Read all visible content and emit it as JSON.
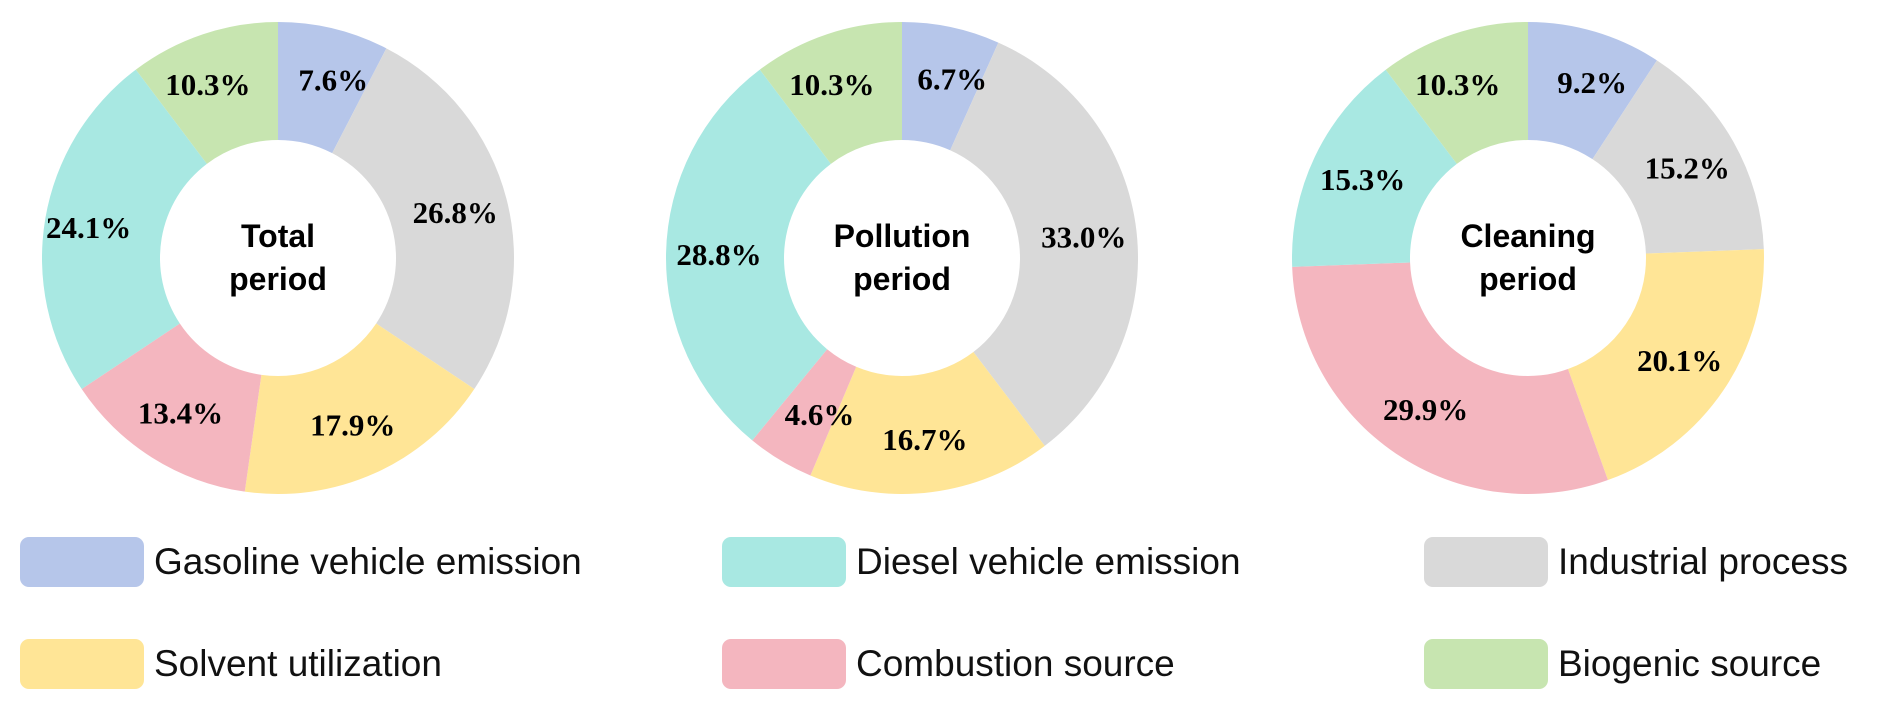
{
  "chart_data": {
    "type": "pie",
    "categories": [
      "Gasoline vehicle emission",
      "Industrial process",
      "Solvent utilization",
      "Combustion source",
      "Diesel vehicle emission",
      "Biogenic source"
    ],
    "colors": [
      "#b6c6ea",
      "#d9d9d9",
      "#ffe596",
      "#f4b6bf",
      "#a8e8e2",
      "#c7e5b0"
    ],
    "charts": [
      {
        "center_label": [
          "Total",
          "period"
        ],
        "values": [
          7.6,
          26.8,
          17.9,
          13.4,
          24.1,
          10.3
        ],
        "labels": [
          "7.6%",
          "26.8%",
          "17.9%",
          "13.4%",
          "24.1%",
          "10.3%"
        ]
      },
      {
        "center_label": [
          "Pollution",
          "period"
        ],
        "values": [
          6.7,
          33.0,
          16.7,
          4.6,
          28.8,
          10.3
        ],
        "labels": [
          "6.7%",
          "33.0%",
          "16.7%",
          "4.6%",
          "28.8%",
          "10.3%"
        ]
      },
      {
        "center_label": [
          "Cleaning",
          "period"
        ],
        "values": [
          9.2,
          15.2,
          20.1,
          29.9,
          15.3,
          10.3
        ],
        "labels": [
          "9.2%",
          "15.2%",
          "20.1%",
          "29.9%",
          "15.3%",
          "10.3%"
        ]
      }
    ]
  },
  "legend": [
    {
      "label": "Gasoline vehicle emission",
      "color": "#b6c6ea"
    },
    {
      "label": "Diesel vehicle emission",
      "color": "#a8e8e2"
    },
    {
      "label": "Industrial process",
      "color": "#d9d9d9"
    },
    {
      "label": "Solvent utilization",
      "color": "#ffe596"
    },
    {
      "label": "Combustion source",
      "color": "#f4b6bf"
    },
    {
      "label": "Biogenic source",
      "color": "#c7e5b0"
    }
  ]
}
